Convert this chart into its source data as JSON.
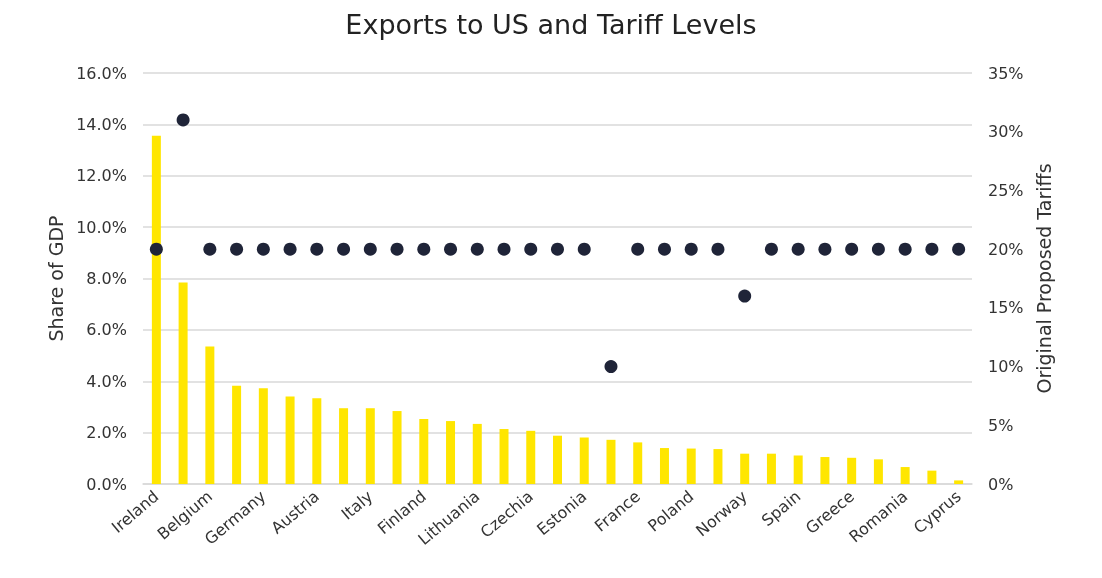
{
  "chart_data": {
    "type": "bar",
    "title": "Exports to US and Tariff Levels",
    "ylabel": "Share of GDP",
    "y2label": "Original Proposed Tariffs",
    "categories": [
      "Ireland",
      null,
      "Belgium",
      null,
      "Germany",
      null,
      "Austria",
      null,
      "Italy",
      null,
      "Finland",
      null,
      "Lithuania",
      null,
      "Czechia",
      null,
      "Estonia",
      null,
      "France",
      null,
      "Poland",
      null,
      "Norway",
      null,
      "Spain",
      null,
      "Greece",
      null,
      "Romania",
      null,
      "Cyprus"
    ],
    "series": [
      {
        "color": "#ffe600",
        "values": [
          13.56,
          7.84,
          5.35,
          3.82,
          3.73,
          3.41,
          3.34,
          2.95,
          2.95,
          2.84,
          2.53,
          2.45,
          2.34,
          2.14,
          2.07,
          1.88,
          1.81,
          1.72,
          1.62,
          1.4,
          1.38,
          1.36,
          1.18,
          1.18,
          1.11,
          1.05,
          1.02,
          0.96,
          0.66,
          0.52,
          0.14
        ]
      },
      {
        "type": "scatter",
        "axis": "y2",
        "color": "#1f2438",
        "marker": "circle",
        "values": [
          20,
          31,
          20,
          20,
          20,
          20,
          20,
          20,
          20,
          20,
          20,
          20,
          20,
          20,
          20,
          20,
          20,
          10,
          20,
          20,
          20,
          20,
          16,
          20,
          20,
          20,
          20,
          20,
          20,
          20,
          20
        ]
      }
    ],
    "ylim": [
      0,
      16
    ],
    "yticks": [
      {
        "value": 0,
        "label": "0.0%"
      },
      {
        "value": 2,
        "label": "2.0%"
      },
      {
        "value": 4,
        "label": "4.0%"
      },
      {
        "value": 6,
        "label": "6.0%"
      },
      {
        "value": 8,
        "label": "8.0%"
      },
      {
        "value": 10,
        "label": "10.0%"
      },
      {
        "value": 12,
        "label": "12.0%"
      },
      {
        "value": 14,
        "label": "14.0%"
      },
      {
        "value": 16,
        "label": "16.0%"
      }
    ],
    "y2lim": [
      0,
      35
    ],
    "y2ticks": [
      {
        "value": 0,
        "label": "0%"
      },
      {
        "value": 5,
        "label": "5%"
      },
      {
        "value": 10,
        "label": "10%"
      },
      {
        "value": 15,
        "label": "15%"
      },
      {
        "value": 20,
        "label": "20%"
      },
      {
        "value": 25,
        "label": "25%"
      },
      {
        "value": 30,
        "label": "30%"
      },
      {
        "value": 35,
        "label": "35%"
      }
    ],
    "grid": "y"
  }
}
